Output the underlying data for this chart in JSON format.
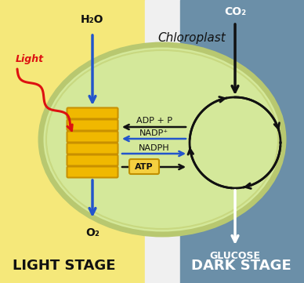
{
  "fig_w": 3.88,
  "fig_h": 3.61,
  "bg_left_color": "#f5e87a",
  "bg_white_color": "#f0f0f0",
  "bg_right_color": "#6b8fa8",
  "chloroplast_fill": "#d4e89a",
  "chloroplast_edge": "#b8c870",
  "chloroplast_edge2": "#c8d880",
  "thylakoid_fill": "#f0b800",
  "thylakoid_edge": "#c89000",
  "atp_box_fill": "#f5d040",
  "atp_box_edge": "#c09000",
  "light_stage_label": "LIGHT STAGE",
  "dark_stage_label": "DARK STAGE",
  "chloroplast_label": "Chloroplast",
  "h2o_label": "H₂O",
  "co2_label": "CO₂",
  "o2_label": "O₂",
  "glucose_label": "GLUCOSE",
  "light_label": "Light",
  "adp_label": "ADP + P",
  "nadp_label": "NADP⁺",
  "nadph_label": "NADPH",
  "atp_label": "ATP",
  "arrow_blue": "#2255cc",
  "arrow_black": "#111111",
  "arrow_white": "#ffffff",
  "co2_arrow_color": "#111111",
  "light_text_color": "#dd1111",
  "label_dark_color": "#111111",
  "label_white_color": "#ffffff",
  "bg_boundary": 185
}
